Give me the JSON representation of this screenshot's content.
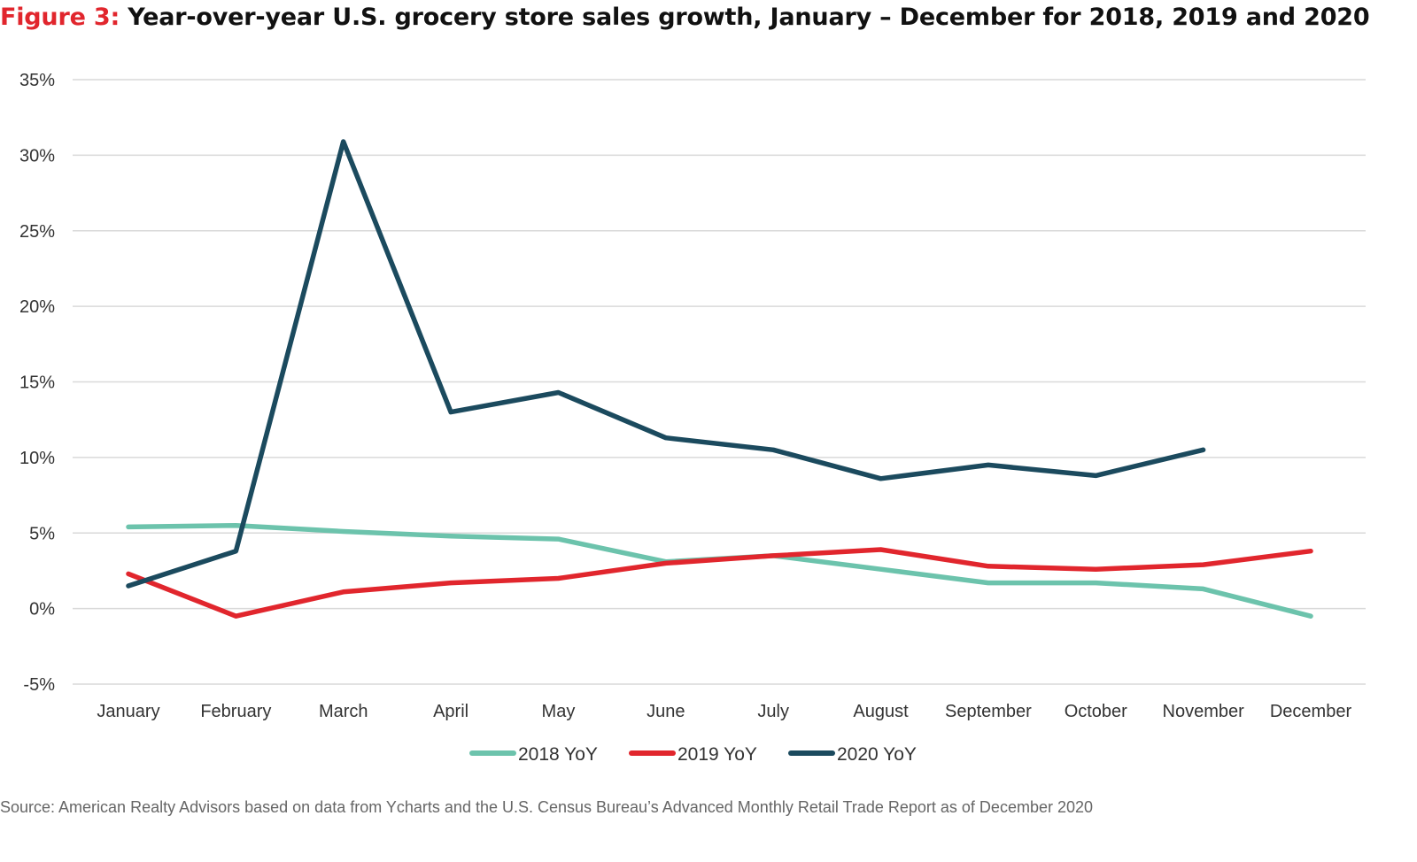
{
  "figure": {
    "prefix": "Figure 3:",
    "title": "Year-over-year U.S. grocery store sales growth, January – December for 2018, 2019 and 2020"
  },
  "source_note": "Source: American Realty Advisors based on data from Ycharts and the U.S. Census Bureau’s Advanced Monthly Retail Trade Report as of December 2020",
  "colors": {
    "title_accent": "#e1262d",
    "grid": "#d9d9d9"
  },
  "chart_data": {
    "type": "line",
    "title": "Year-over-year U.S. grocery store sales growth, January – December for 2018, 2019 and 2020",
    "xlabel": "",
    "ylabel": "",
    "categories": [
      "January",
      "February",
      "March",
      "April",
      "May",
      "June",
      "July",
      "August",
      "September",
      "October",
      "November",
      "December"
    ],
    "ylim": [
      -5,
      35
    ],
    "yticks": [
      -5,
      0,
      5,
      10,
      15,
      20,
      25,
      30,
      35
    ],
    "ytick_labels": [
      "-5%",
      "0%",
      "5%",
      "10%",
      "15%",
      "20%",
      "25%",
      "30%",
      "35%"
    ],
    "grid": true,
    "legend_position": "bottom-center",
    "series": [
      {
        "name": "2018 YoY",
        "color": "#6cc3ac",
        "values": [
          5.4,
          5.5,
          5.1,
          4.8,
          4.6,
          3.1,
          3.5,
          2.6,
          1.7,
          1.7,
          1.3,
          -0.5
        ]
      },
      {
        "name": "2019 YoY",
        "color": "#e1262d",
        "values": [
          2.3,
          -0.5,
          1.1,
          1.7,
          2.0,
          3.0,
          3.5,
          3.9,
          2.8,
          2.6,
          2.9,
          3.8
        ]
      },
      {
        "name": "2020 YoY",
        "color": "#1b4a5e",
        "values": [
          1.5,
          3.8,
          30.9,
          13.0,
          14.3,
          11.3,
          10.5,
          8.6,
          9.5,
          8.8,
          10.5,
          null
        ]
      }
    ]
  }
}
